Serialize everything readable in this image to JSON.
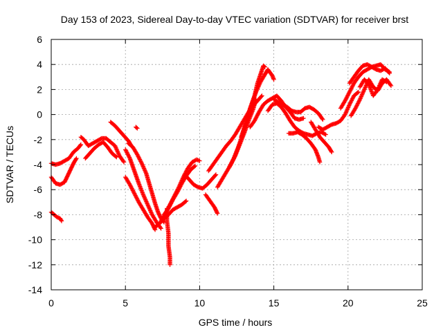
{
  "chart_data": {
    "type": "scatter",
    "title": "Day 153 of 2023, Sidereal Day-to-day VTEC variation (SDTVAR) for receiver brst",
    "xlabel": "GPS time / hours",
    "ylabel": "SDTVAR / TECUs",
    "xlim": [
      0,
      25
    ],
    "ylim": [
      -14,
      6
    ],
    "xticks": [
      0,
      5,
      10,
      15,
      20,
      25
    ],
    "yticks": [
      6,
      4,
      2,
      0,
      -2,
      -4,
      -6,
      -8,
      -10,
      -12,
      -14
    ],
    "grid": true,
    "marker": "plus",
    "color": "#ff0000",
    "series": [
      {
        "name": "SDTVAR",
        "segments": [
          [
            [
              0.0,
              -3.9
            ],
            [
              0.3,
              -4.0
            ],
            [
              0.6,
              -3.9
            ],
            [
              0.9,
              -3.7
            ],
            [
              1.2,
              -3.5
            ],
            [
              1.5,
              -3.0
            ],
            [
              1.8,
              -2.7
            ],
            [
              2.0,
              -2.4
            ]
          ],
          [
            [
              0.0,
              -5.0
            ],
            [
              0.3,
              -5.5
            ],
            [
              0.6,
              -5.6
            ],
            [
              0.9,
              -5.4
            ],
            [
              1.1,
              -4.9
            ],
            [
              1.3,
              -4.4
            ],
            [
              1.5,
              -3.9
            ],
            [
              1.7,
              -3.5
            ]
          ],
          [
            [
              0.0,
              -7.8
            ],
            [
              0.2,
              -8.0
            ],
            [
              0.4,
              -8.2
            ],
            [
              0.6,
              -8.3
            ],
            [
              0.7,
              -8.5
            ]
          ],
          [
            [
              2.0,
              -1.8
            ],
            [
              2.2,
              -2.0
            ],
            [
              2.5,
              -2.5
            ],
            [
              2.8,
              -2.3
            ],
            [
              3.1,
              -2.1
            ],
            [
              3.4,
              -1.9
            ],
            [
              3.7,
              -1.9
            ],
            [
              4.0,
              -2.2
            ],
            [
              4.3,
              -2.5
            ],
            [
              4.6,
              -3.3
            ],
            [
              4.9,
              -3.8
            ]
          ],
          [
            [
              2.3,
              -3.5
            ],
            [
              2.6,
              -3.1
            ],
            [
              2.9,
              -2.7
            ],
            [
              3.2,
              -2.4
            ],
            [
              3.5,
              -2.2
            ],
            [
              3.8,
              -2.6
            ],
            [
              4.1,
              -3.1
            ],
            [
              4.4,
              -3.4
            ]
          ],
          [
            [
              4.0,
              -0.6
            ],
            [
              4.3,
              -0.9
            ],
            [
              4.6,
              -1.3
            ],
            [
              4.9,
              -1.7
            ],
            [
              5.2,
              -2.1
            ],
            [
              5.4,
              -2.5
            ]
          ],
          [
            [
              5.0,
              -2.8
            ],
            [
              5.3,
              -3.5
            ],
            [
              5.6,
              -4.5
            ],
            [
              5.9,
              -5.5
            ],
            [
              6.2,
              -6.4
            ],
            [
              6.5,
              -7.2
            ],
            [
              6.8,
              -8.0
            ],
            [
              7.1,
              -8.6
            ],
            [
              7.4,
              -9.1
            ]
          ],
          [
            [
              5.2,
              -2.3
            ],
            [
              5.5,
              -2.6
            ],
            [
              5.8,
              -3.2
            ],
            [
              6.1,
              -3.9
            ],
            [
              6.4,
              -4.7
            ],
            [
              6.6,
              -5.5
            ],
            [
              6.8,
              -6.3
            ],
            [
              7.0,
              -7.1
            ],
            [
              7.2,
              -7.8
            ],
            [
              7.4,
              -8.3
            ],
            [
              7.6,
              -8.6
            ]
          ],
          [
            [
              5.0,
              -5.0
            ],
            [
              5.3,
              -5.6
            ],
            [
              5.6,
              -6.3
            ],
            [
              5.9,
              -7.0
            ],
            [
              6.2,
              -7.6
            ],
            [
              6.5,
              -8.2
            ],
            [
              6.8,
              -8.7
            ],
            [
              7.0,
              -9.2
            ]
          ],
          [
            [
              5.7,
              -1.0
            ],
            [
              5.8,
              -1.1
            ]
          ],
          [
            [
              7.0,
              -9.0
            ],
            [
              7.3,
              -8.7
            ],
            [
              7.6,
              -8.3
            ],
            [
              7.9,
              -8.0
            ],
            [
              8.2,
              -7.6
            ],
            [
              8.5,
              -7.4
            ],
            [
              8.8,
              -7.2
            ],
            [
              9.1,
              -6.9
            ]
          ],
          [
            [
              7.4,
              -8.5
            ],
            [
              7.7,
              -7.9
            ],
            [
              8.0,
              -7.2
            ],
            [
              8.3,
              -6.5
            ],
            [
              8.6,
              -5.8
            ],
            [
              8.9,
              -5.0
            ],
            [
              9.2,
              -4.3
            ],
            [
              9.5,
              -3.8
            ],
            [
              9.8,
              -3.6
            ],
            [
              10.0,
              -3.7
            ]
          ],
          [
            [
              7.6,
              -8.0
            ],
            [
              7.9,
              -7.5
            ],
            [
              8.2,
              -6.8
            ],
            [
              8.5,
              -6.2
            ],
            [
              8.8,
              -5.5
            ],
            [
              9.1,
              -4.9
            ],
            [
              9.4,
              -4.4
            ],
            [
              9.7,
              -4.1
            ]
          ],
          [
            [
              7.8,
              -7.5
            ],
            [
              7.8,
              -8.5
            ],
            [
              7.9,
              -9.5
            ],
            [
              7.9,
              -10.5
            ],
            [
              8.0,
              -11.4
            ],
            [
              8.0,
              -12.0
            ]
          ],
          [
            [
              9.0,
              -4.8
            ],
            [
              9.3,
              -5.2
            ],
            [
              9.6,
              -5.6
            ],
            [
              9.9,
              -5.8
            ],
            [
              10.2,
              -5.9
            ],
            [
              10.5,
              -5.6
            ],
            [
              10.8,
              -5.2
            ],
            [
              11.1,
              -4.8
            ]
          ],
          [
            [
              10.4,
              -6.4
            ],
            [
              10.7,
              -6.9
            ],
            [
              11.0,
              -7.4
            ],
            [
              11.2,
              -7.9
            ]
          ],
          [
            [
              10.6,
              -4.5
            ],
            [
              10.9,
              -4.0
            ],
            [
              11.2,
              -3.5
            ],
            [
              11.5,
              -3.0
            ],
            [
              11.8,
              -2.5
            ],
            [
              12.1,
              -2.1
            ],
            [
              12.4,
              -1.6
            ],
            [
              12.7,
              -1.0
            ],
            [
              13.0,
              -0.4
            ],
            [
              13.3,
              0.2
            ],
            [
              13.6,
              0.7
            ],
            [
              13.9,
              1.1
            ],
            [
              14.2,
              1.5
            ]
          ],
          [
            [
              11.2,
              -5.8
            ],
            [
              11.5,
              -5.2
            ],
            [
              11.8,
              -4.6
            ],
            [
              12.1,
              -4.0
            ],
            [
              12.4,
              -3.3
            ],
            [
              12.7,
              -2.4
            ],
            [
              13.0,
              -1.5
            ],
            [
              13.3,
              -0.5
            ],
            [
              13.6,
              0.4
            ],
            [
              13.8,
              1.2
            ]
          ],
          [
            [
              12.0,
              -4.2
            ],
            [
              12.3,
              -3.5
            ],
            [
              12.6,
              -2.6
            ],
            [
              12.9,
              -1.6
            ],
            [
              13.2,
              -0.4
            ],
            [
              13.5,
              0.8
            ],
            [
              13.8,
              1.8
            ],
            [
              14.1,
              2.6
            ],
            [
              14.4,
              3.2
            ],
            [
              14.6,
              3.6
            ],
            [
              14.9,
              3.1
            ],
            [
              15.0,
              2.8
            ]
          ],
          [
            [
              12.8,
              -1.8
            ],
            [
              13.1,
              -0.7
            ],
            [
              13.4,
              0.5
            ],
            [
              13.7,
              1.5
            ],
            [
              13.9,
              2.5
            ],
            [
              14.1,
              3.2
            ],
            [
              14.3,
              3.9
            ],
            [
              14.4,
              3.8
            ]
          ],
          [
            [
              13.4,
              -1.0
            ],
            [
              13.7,
              -0.5
            ],
            [
              14.0,
              0.2
            ],
            [
              14.3,
              0.8
            ],
            [
              14.6,
              1.1
            ],
            [
              14.9,
              1.3
            ],
            [
              15.2,
              1.5
            ],
            [
              15.5,
              1.1
            ],
            [
              15.8,
              0.6
            ],
            [
              16.1,
              0.2
            ],
            [
              16.4,
              -0.3
            ],
            [
              16.7,
              -0.4
            ],
            [
              17.0,
              -0.3
            ]
          ],
          [
            [
              14.6,
              0.3
            ],
            [
              14.9,
              0.8
            ],
            [
              15.2,
              0.9
            ],
            [
              15.5,
              0.6
            ],
            [
              15.8,
              0.1
            ],
            [
              16.1,
              -0.5
            ],
            [
              16.4,
              -1.0
            ],
            [
              16.7,
              -1.3
            ],
            [
              17.0,
              -1.5
            ],
            [
              17.3,
              -1.6
            ],
            [
              17.6,
              -1.7
            ],
            [
              17.9,
              -1.5
            ],
            [
              18.2,
              -1.4
            ],
            [
              18.5,
              -1.6
            ]
          ],
          [
            [
              15.0,
              1.2
            ],
            [
              15.3,
              1.0
            ],
            [
              15.6,
              0.8
            ],
            [
              15.9,
              0.6
            ],
            [
              16.2,
              0.3
            ],
            [
              16.5,
              0.2
            ],
            [
              16.8,
              0.2
            ],
            [
              17.1,
              0.5
            ],
            [
              17.4,
              0.6
            ],
            [
              17.7,
              0.4
            ],
            [
              18.0,
              0.1
            ],
            [
              18.3,
              -0.4
            ]
          ],
          [
            [
              16.0,
              -1.5
            ],
            [
              16.3,
              -1.5
            ],
            [
              16.6,
              -1.4
            ],
            [
              16.9,
              -1.6
            ],
            [
              17.2,
              -1.9
            ],
            [
              17.5,
              -2.3
            ],
            [
              17.8,
              -2.8
            ],
            [
              18.0,
              -3.4
            ],
            [
              18.1,
              -3.8
            ]
          ],
          [
            [
              17.5,
              -0.6
            ],
            [
              17.8,
              -1.2
            ],
            [
              18.1,
              -1.8
            ],
            [
              18.4,
              -2.2
            ],
            [
              18.7,
              -2.6
            ],
            [
              18.9,
              -3.0
            ]
          ],
          [
            [
              18.0,
              -1.0
            ],
            [
              18.3,
              -1.2
            ],
            [
              18.6,
              -1.0
            ],
            [
              18.9,
              -0.8
            ],
            [
              19.2,
              -0.7
            ],
            [
              19.5,
              -0.5
            ],
            [
              19.8,
              0.0
            ],
            [
              20.1,
              0.8
            ],
            [
              20.4,
              1.5
            ],
            [
              20.7,
              1.8
            ]
          ],
          [
            [
              19.5,
              0.5
            ],
            [
              19.8,
              1.1
            ],
            [
              20.1,
              1.8
            ],
            [
              20.4,
              2.5
            ],
            [
              20.7,
              3.0
            ],
            [
              21.0,
              3.4
            ],
            [
              21.3,
              3.6
            ],
            [
              21.6,
              3.8
            ],
            [
              21.9,
              3.6
            ],
            [
              22.2,
              3.5
            ],
            [
              22.5,
              3.7
            ],
            [
              22.8,
              3.3
            ]
          ],
          [
            [
              20.1,
              2.5
            ],
            [
              20.4,
              3.0
            ],
            [
              20.7,
              3.5
            ],
            [
              21.0,
              3.9
            ],
            [
              21.3,
              4.0
            ],
            [
              21.6,
              3.8
            ],
            [
              21.9,
              3.9
            ],
            [
              22.2,
              4.0
            ],
            [
              22.5,
              3.6
            ],
            [
              22.8,
              3.4
            ]
          ],
          [
            [
              20.2,
              -0.1
            ],
            [
              20.5,
              0.5
            ],
            [
              20.8,
              1.2
            ],
            [
              21.1,
              2.0
            ],
            [
              21.4,
              2.8
            ],
            [
              21.7,
              2.2
            ],
            [
              22.0,
              1.9
            ],
            [
              22.3,
              2.5
            ],
            [
              22.6,
              2.8
            ],
            [
              22.9,
              2.3
            ]
          ],
          [
            [
              20.8,
              2.2
            ],
            [
              21.1,
              2.8
            ],
            [
              21.4,
              2.4
            ],
            [
              21.7,
              1.5
            ],
            [
              22.0,
              2.0
            ],
            [
              22.3,
              2.8
            ],
            [
              22.6,
              2.6
            ]
          ]
        ]
      }
    ]
  }
}
